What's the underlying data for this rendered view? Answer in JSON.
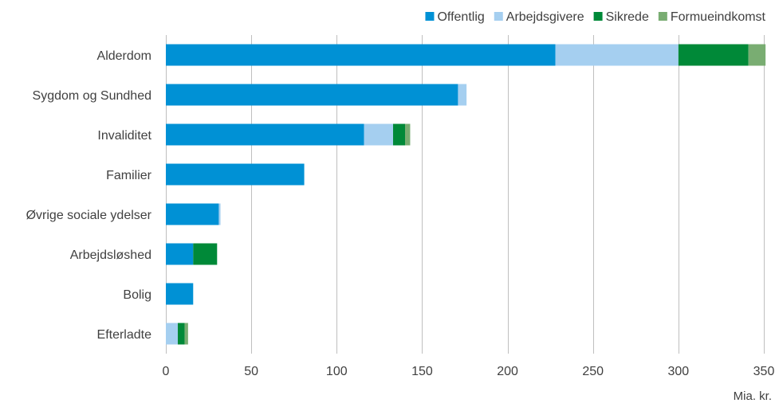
{
  "chart_data": {
    "type": "bar",
    "orientation": "horizontal",
    "stacked": true,
    "categories": [
      "Alderdom",
      "Sygdom og Sundhed",
      "Invaliditet",
      "Familier",
      "Øvrige sociale ydelser",
      "Arbejdsløshed",
      "Bolig",
      "Efterladte"
    ],
    "series": [
      {
        "name": "Offentlig",
        "color": "#0091d5",
        "values": [
          228,
          171,
          116,
          81,
          31,
          16,
          16,
          0
        ]
      },
      {
        "name": "Arbejdsgivere",
        "color": "#a5cff0",
        "values": [
          72,
          5,
          17,
          0,
          1,
          0,
          0,
          7
        ]
      },
      {
        "name": "Sikrede",
        "color": "#008938",
        "values": [
          41,
          0,
          7,
          0,
          0,
          14,
          0,
          4
        ]
      },
      {
        "name": "Formueindkomst",
        "color": "#79ad72",
        "values": [
          10,
          0,
          3,
          0,
          0,
          0,
          0,
          2
        ]
      }
    ],
    "xlim": [
      0,
      350
    ],
    "xticks": [
      0,
      50,
      100,
      150,
      200,
      250,
      300,
      350
    ],
    "unit": "Mia. kr.",
    "grid": "vertical",
    "legend_position": "top-right"
  }
}
